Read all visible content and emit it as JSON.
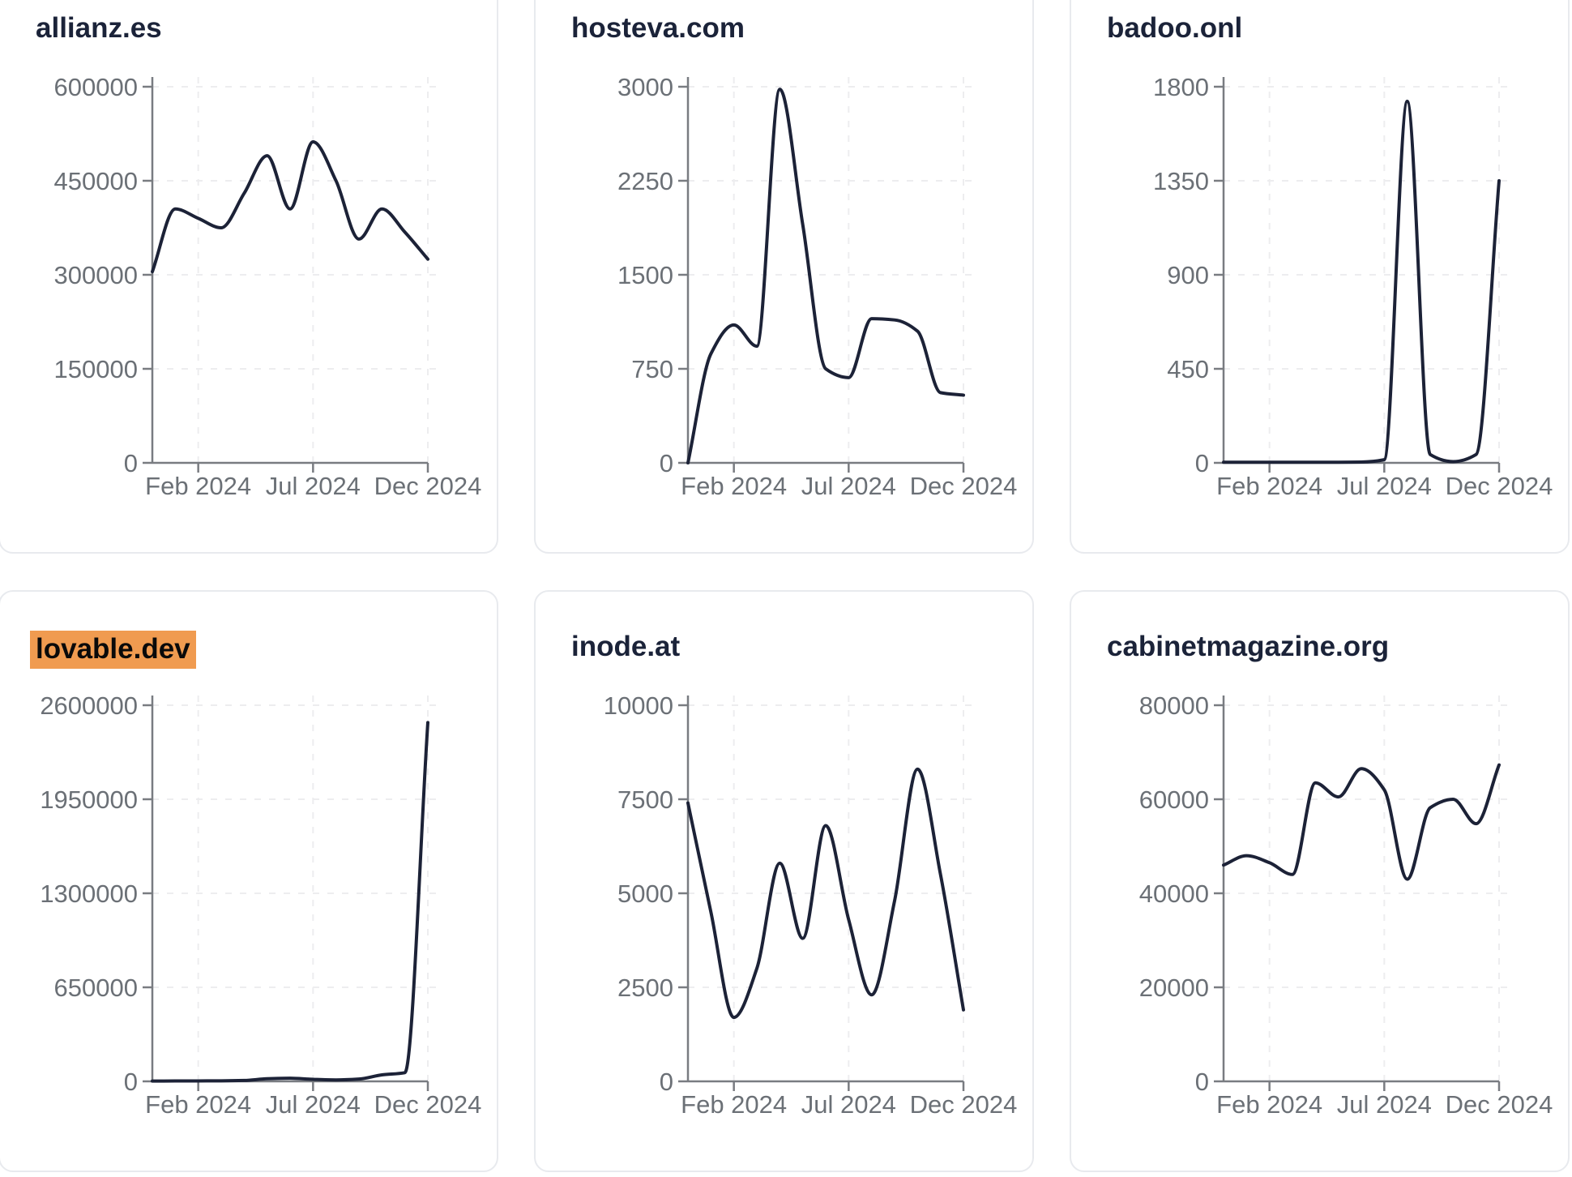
{
  "page": {
    "background": "#ffffff"
  },
  "styles": {
    "line_color": "#1c2237",
    "grid_color": "#ededef",
    "axis_color": "#797c81",
    "tick_text_color": "#6b7076",
    "title_color": "#1b2339",
    "card_border_color": "#e8eaee",
    "highlight_color": "#f09b50",
    "highlight_text_color": "#0a0a0a"
  },
  "x_axis": {
    "months": [
      "Dec 2023",
      "Jan 2024",
      "Feb 2024",
      "Mar 2024",
      "Apr 2024",
      "May 2024",
      "Jun 2024",
      "Jul 2024",
      "Aug 2024",
      "Sep 2024",
      "Oct 2024",
      "Nov 2024",
      "Dec 2024"
    ],
    "tick_labels": [
      "Feb 2024",
      "Jul 2024",
      "Dec 2024"
    ],
    "tick_month_indices": [
      2,
      7,
      12
    ]
  },
  "chart_data": [
    {
      "type": "line",
      "title": "allianz.es",
      "highlighted": false,
      "x": [
        "Dec 2023",
        "Jan 2024",
        "Feb 2024",
        "Mar 2024",
        "Apr 2024",
        "May 2024",
        "Jun 2024",
        "Jul 2024",
        "Aug 2024",
        "Sep 2024",
        "Oct 2024",
        "Nov 2024",
        "Dec 2024"
      ],
      "values": [
        305000,
        405000,
        390000,
        375000,
        430000,
        490000,
        405000,
        512000,
        450000,
        357000,
        405000,
        368000,
        325000
      ],
      "y_ticks": [
        0,
        150000,
        300000,
        450000,
        600000
      ],
      "ylim": [
        0,
        600000
      ],
      "x_tick_labels": [
        "Feb 2024",
        "Jul 2024",
        "Dec 2024"
      ],
      "grid": "dashed",
      "legend": "none"
    },
    {
      "type": "line",
      "title": "hosteva.com",
      "highlighted": false,
      "x": [
        "Dec 2023",
        "Jan 2024",
        "Feb 2024",
        "Mar 2024",
        "Apr 2024",
        "May 2024",
        "Jun 2024",
        "Jul 2024",
        "Aug 2024",
        "Sep 2024",
        "Oct 2024",
        "Nov 2024",
        "Dec 2024"
      ],
      "values": [
        0,
        870,
        1100,
        930,
        2980,
        1900,
        750,
        680,
        1150,
        1140,
        1050,
        560,
        540
      ],
      "y_ticks": [
        0,
        750,
        1500,
        2250,
        3000
      ],
      "ylim": [
        0,
        3000
      ],
      "x_tick_labels": [
        "Feb 2024",
        "Jul 2024",
        "Dec 2024"
      ],
      "grid": "dashed",
      "legend": "none"
    },
    {
      "type": "line",
      "title": "badoo.onl",
      "highlighted": false,
      "x": [
        "Dec 2023",
        "Jan 2024",
        "Feb 2024",
        "Mar 2024",
        "Apr 2024",
        "May 2024",
        "Jun 2024",
        "Jul 2024",
        "Aug 2024",
        "Sep 2024",
        "Oct 2024",
        "Nov 2024",
        "Dec 2024"
      ],
      "values": [
        3,
        3,
        3,
        3,
        3,
        3,
        4,
        15,
        1730,
        40,
        6,
        40,
        1350
      ],
      "y_ticks": [
        0,
        450,
        900,
        1350,
        1800
      ],
      "ylim": [
        0,
        1800
      ],
      "x_tick_labels": [
        "Feb 2024",
        "Jul 2024",
        "Dec 2024"
      ],
      "grid": "dashed",
      "legend": "none"
    },
    {
      "type": "line",
      "title": "lovable.dev",
      "highlighted": true,
      "x": [
        "Dec 2023",
        "Jan 2024",
        "Feb 2024",
        "Mar 2024",
        "Apr 2024",
        "May 2024",
        "Jun 2024",
        "Jul 2024",
        "Aug 2024",
        "Sep 2024",
        "Oct 2024",
        "Nov 2024",
        "Dec 2024"
      ],
      "values": [
        2000,
        2500,
        3000,
        3500,
        6000,
        18000,
        22000,
        14000,
        10000,
        16000,
        45000,
        60000,
        2480000
      ],
      "y_ticks": [
        0,
        650000,
        1300000,
        1950000,
        2600000
      ],
      "ylim": [
        0,
        2600000
      ],
      "x_tick_labels": [
        "Feb 2024",
        "Jul 2024",
        "Dec 2024"
      ],
      "grid": "dashed",
      "legend": "none"
    },
    {
      "type": "line",
      "title": "inode.at",
      "highlighted": false,
      "x": [
        "Dec 2023",
        "Jan 2024",
        "Feb 2024",
        "Mar 2024",
        "Apr 2024",
        "May 2024",
        "Jun 2024",
        "Jul 2024",
        "Aug 2024",
        "Sep 2024",
        "Oct 2024",
        "Nov 2024",
        "Dec 2024"
      ],
      "values": [
        7400,
        4500,
        1700,
        3000,
        5800,
        3800,
        6800,
        4300,
        2300,
        4800,
        8300,
        5500,
        1900
      ],
      "y_ticks": [
        0,
        2500,
        5000,
        7500,
        10000
      ],
      "ylim": [
        0,
        10000
      ],
      "x_tick_labels": [
        "Feb 2024",
        "Jul 2024",
        "Dec 2024"
      ],
      "grid": "dashed",
      "legend": "none"
    },
    {
      "type": "line",
      "title": "cabinetmagazine.org",
      "highlighted": false,
      "x": [
        "Dec 2023",
        "Jan 2024",
        "Feb 2024",
        "Mar 2024",
        "Apr 2024",
        "May 2024",
        "Jun 2024",
        "Jul 2024",
        "Aug 2024",
        "Sep 2024",
        "Oct 2024",
        "Nov 2024",
        "Dec 2024"
      ],
      "values": [
        46000,
        48000,
        46500,
        44000,
        63500,
        60500,
        66500,
        62000,
        43000,
        58200,
        60000,
        54800,
        67300
      ],
      "y_ticks": [
        0,
        20000,
        40000,
        60000,
        80000
      ],
      "ylim": [
        0,
        80000
      ],
      "x_tick_labels": [
        "Feb 2024",
        "Jul 2024",
        "Dec 2024"
      ],
      "grid": "dashed",
      "legend": "none"
    }
  ]
}
